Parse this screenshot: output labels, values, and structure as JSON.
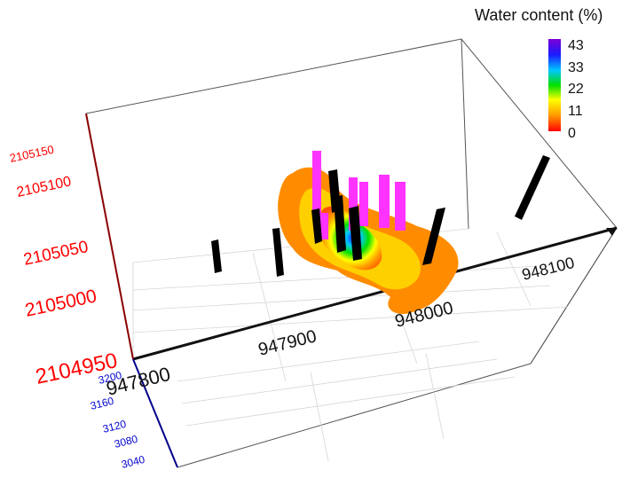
{
  "chart_data": {
    "type": "3d-contour",
    "legend": {
      "title": "Water content (%)",
      "ticks": [
        "43",
        "33",
        "22",
        "11",
        "0"
      ],
      "colors": [
        "#7b00d4",
        "#1a1aff",
        "#00c8ff",
        "#00e000",
        "#ffff00",
        "#ff9900",
        "#ff0000"
      ]
    },
    "x_axis": {
      "ticks": [
        "947800",
        "947900",
        "948000",
        "948100"
      ],
      "color": "#111111"
    },
    "y_axis": {
      "ticks": [
        "2104950",
        "2105000",
        "2105050",
        "2105100",
        "2105150"
      ],
      "color": "#ff0000"
    },
    "z_axis": {
      "ticks": [
        "3200",
        "3160",
        "3120",
        "3080",
        "3040"
      ],
      "color": "#0000cc"
    }
  }
}
